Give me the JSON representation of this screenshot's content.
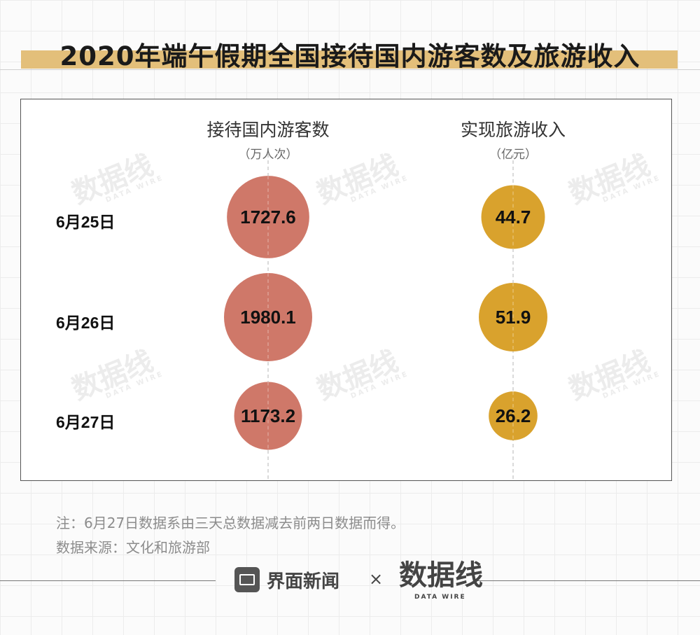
{
  "title": "2020年端午假期全国接待国内游客数及旅游收入",
  "columns": [
    {
      "title": "接待国内游客数",
      "unit": "（万人次）",
      "color": "#cf7869"
    },
    {
      "title": "实现旅游收入",
      "unit": "（亿元）",
      "color": "#d9a22d"
    }
  ],
  "rows": [
    "6月25日",
    "6月26日",
    "6月27日"
  ],
  "chart_data": {
    "type": "bubble",
    "title": "2020年端午假期全国接待国内游客数及旅游收入",
    "categories": [
      "6月25日",
      "6月26日",
      "6月27日"
    ],
    "series": [
      {
        "name": "接待国内游客数",
        "unit": "（万人次）",
        "values": [
          1727.6,
          1980.1,
          1173.2
        ]
      },
      {
        "name": "实现旅游收入",
        "unit": "（亿元）",
        "values": [
          44.7,
          51.9,
          26.2
        ]
      }
    ]
  },
  "notes": [
    "注：6月27日数据系由三天总数据减去前两日数据而得。",
    "数据来源：文化和旅游部"
  ],
  "watermark": {
    "text": "数据线",
    "sub": "DATA WIRE"
  },
  "footer": {
    "brand": "界面新闻",
    "times": "×",
    "partner": "数据线",
    "partner_sub": "DATA WIRE"
  }
}
